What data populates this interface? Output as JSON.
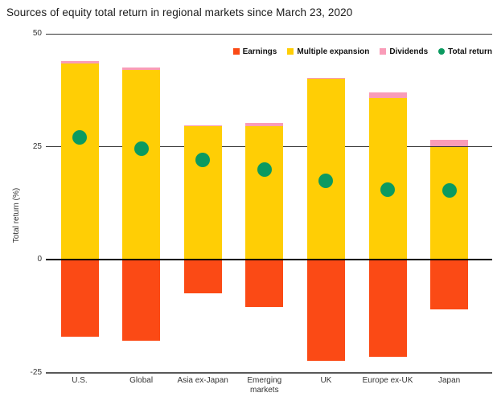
{
  "title": "Sources of equity total return in regional markets since March 23, 2020",
  "legend": [
    {
      "label": "Earnings",
      "color": "#FB4A15",
      "shape": "square"
    },
    {
      "label": "Multiple expansion",
      "color": "#FFCE05",
      "shape": "square"
    },
    {
      "label": "Dividends",
      "color": "#F99CB8",
      "shape": "square"
    },
    {
      "label": "Total return",
      "color": "#0B9A60",
      "shape": "circle"
    }
  ],
  "y_axis": {
    "label": "Total return (%)"
  },
  "chart_data": {
    "type": "bar",
    "stacked": true,
    "title": "Sources of equity total return in regional markets since March 23, 2020",
    "categories": [
      "U.S.",
      "Global",
      "Asia ex-Japan",
      "Emerging markets",
      "UK",
      "Europe ex-UK",
      "Japan"
    ],
    "series": [
      {
        "name": "Earnings",
        "render": "bar",
        "color": "#FB4A15",
        "values": [
          -17,
          -18,
          -7.5,
          -10.5,
          -22.5,
          -21.5,
          -11
        ]
      },
      {
        "name": "Multiple expansion",
        "render": "bar",
        "color": "#FFCE05",
        "values": [
          43.5,
          42,
          29.5,
          29.5,
          40,
          35.8,
          25
        ]
      },
      {
        "name": "Dividends",
        "render": "bar",
        "color": "#F99CB8",
        "values": [
          0.5,
          0.5,
          0.2,
          0.7,
          0.2,
          1.2,
          1.5
        ]
      },
      {
        "name": "Total return",
        "render": "point",
        "color": "#0B9A60",
        "values": [
          27,
          24.5,
          22,
          20,
          17.5,
          15.5,
          15.3
        ]
      }
    ],
    "xlabel": "",
    "ylabel": "Total return (%)",
    "yticks": [
      50,
      25,
      0,
      -25
    ],
    "ylim": [
      -25,
      50
    ],
    "grid": true,
    "legend_position": "top-right",
    "colors": {
      "earnings": "#FB4A15",
      "multiple_expansion": "#FFCE05",
      "dividends": "#F99CB8",
      "total_return": "#0B9A60",
      "zero_line": "#000000",
      "gridline": "#333333",
      "baseline": "#595959"
    }
  }
}
